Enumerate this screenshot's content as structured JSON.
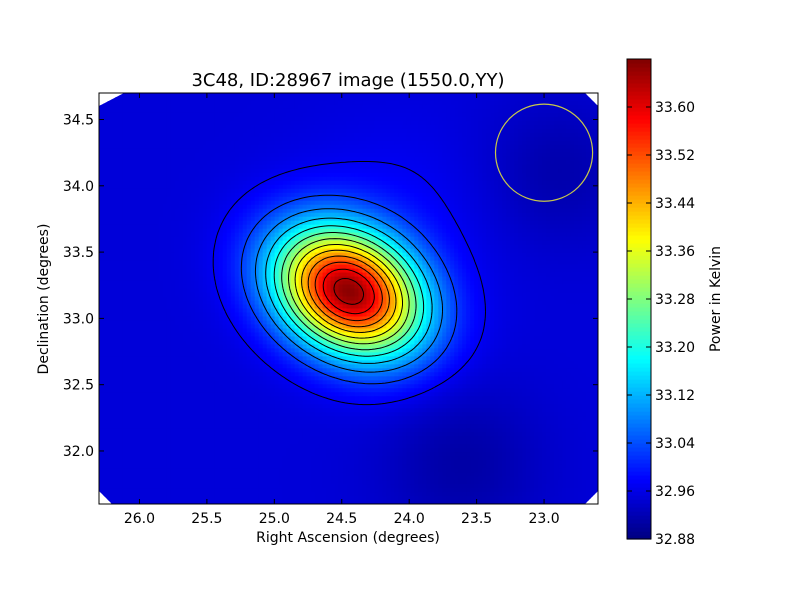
{
  "chart_data": {
    "type": "heatmap",
    "title": "3C48, ID:28967 image (1550.0,YY)",
    "xlabel": "Right Ascension (degrees)",
    "ylabel": "Declination (degrees)",
    "xlim": [
      26.3,
      22.6
    ],
    "ylim": [
      31.6,
      34.7
    ],
    "x_inverted": true,
    "x_ticks": [
      {
        "value": 26.0,
        "label": "26.0"
      },
      {
        "value": 25.5,
        "label": "25.5"
      },
      {
        "value": 25.0,
        "label": "25.0"
      },
      {
        "value": 24.5,
        "label": "24.5"
      },
      {
        "value": 24.0,
        "label": "24.0"
      },
      {
        "value": 23.5,
        "label": "23.5"
      },
      {
        "value": 23.0,
        "label": "23.0"
      }
    ],
    "y_ticks": [
      {
        "value": 32.0,
        "label": "32.0"
      },
      {
        "value": 32.5,
        "label": "32.5"
      },
      {
        "value": 33.0,
        "label": "33.0"
      },
      {
        "value": 33.5,
        "label": "33.5"
      },
      {
        "value": 34.0,
        "label": "34.0"
      },
      {
        "value": 34.5,
        "label": "34.5"
      }
    ],
    "colorbar": {
      "label": "Power in Kelvin",
      "colormap": "jet",
      "min": 32.88,
      "max": 33.68,
      "ticks": [
        {
          "value": 32.88,
          "label": "32.88"
        },
        {
          "value": 32.96,
          "label": "32.96"
        },
        {
          "value": 33.04,
          "label": "33.04"
        },
        {
          "value": 33.12,
          "label": "33.12"
        },
        {
          "value": 33.2,
          "label": "33.20"
        },
        {
          "value": 33.28,
          "label": "33.28"
        },
        {
          "value": 33.36,
          "label": "33.36"
        },
        {
          "value": 33.44,
          "label": "33.44"
        },
        {
          "value": 33.52,
          "label": "33.52"
        },
        {
          "value": 33.6,
          "label": "33.60"
        }
      ]
    },
    "peak": {
      "ra": 24.45,
      "dec": 33.2,
      "value": 33.66
    },
    "contour_count": 13,
    "beam": {
      "ra": 23.0,
      "dec": 34.25,
      "radius_deg": 0.36,
      "color": "#c8c84a"
    },
    "grid": false,
    "legend": "none"
  }
}
